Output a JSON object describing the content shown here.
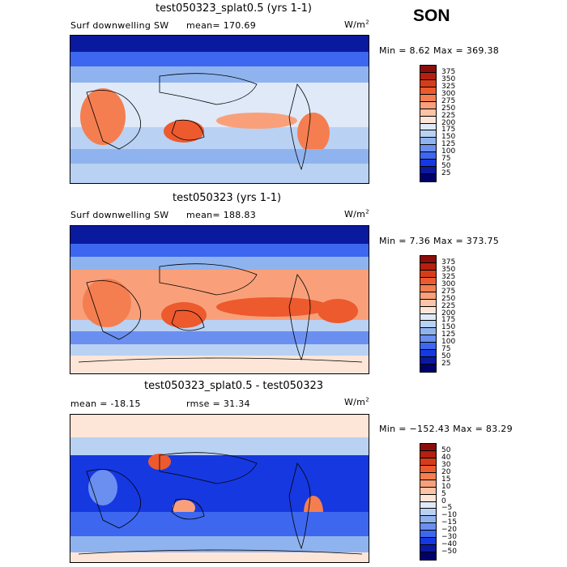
{
  "season": "SON",
  "panels": [
    {
      "title": "test050323_splat0.5 (yrs 1-1)",
      "variable": "Surf downwelling SW",
      "stat": "mean= 170.69",
      "units": "W/m",
      "units_sup": "2",
      "minmax": "Min =    8.62 Max = 369.38",
      "levels": [
        "375",
        "350",
        "325",
        "300",
        "275",
        "250",
        "225",
        "200",
        "175",
        "150",
        "125",
        "100",
        "75",
        "50",
        "25"
      ],
      "colors": [
        "#8b0d0b",
        "#b2210f",
        "#d73c1a",
        "#ec5a2e",
        "#f47e50",
        "#f9a07a",
        "#fbc4a6",
        "#fde6d8",
        "#dfe9f7",
        "#b9d1f3",
        "#8fb3ee",
        "#6a8ff0",
        "#3d67ef",
        "#1638e0",
        "#0a1a9e",
        "#00006b"
      ]
    },
    {
      "title": "test050323 (yrs 1-1)",
      "variable": "Surf downwelling SW",
      "stat": "mean= 188.83",
      "units": "W/m",
      "units_sup": "2",
      "minmax": "Min =    7.36 Max = 373.75",
      "levels": [
        "375",
        "350",
        "325",
        "300",
        "275",
        "250",
        "225",
        "200",
        "175",
        "150",
        "125",
        "100",
        "75",
        "50",
        "25"
      ],
      "colors": [
        "#8b0d0b",
        "#b2210f",
        "#d73c1a",
        "#ec5a2e",
        "#f47e50",
        "#f9a07a",
        "#fbc4a6",
        "#fde6d8",
        "#dfe9f7",
        "#b9d1f3",
        "#8fb3ee",
        "#6a8ff0",
        "#3d67ef",
        "#1638e0",
        "#0a1a9e",
        "#00006b"
      ]
    },
    {
      "title": "test050323_splat0.5 - test050323",
      "variable": "mean = -18.15",
      "stat": "rmse =  31.34",
      "units": "W/m",
      "units_sup": "2",
      "minmax": "Min = −152.43 Max =  83.29",
      "levels": [
        "50",
        "40",
        "30",
        "20",
        "15",
        "10",
        "5",
        "0",
        "−5",
        "−10",
        "−15",
        "−20",
        "−30",
        "−40",
        "−50"
      ],
      "colors": [
        "#8b0d0b",
        "#b2210f",
        "#d73c1a",
        "#ec5a2e",
        "#f47e50",
        "#f9a07a",
        "#fbc4a6",
        "#fde6d8",
        "#dfe9f7",
        "#b9d1f3",
        "#8fb3ee",
        "#6a8ff0",
        "#3d67ef",
        "#1638e0",
        "#0a1a9e",
        "#00006b"
      ]
    }
  ],
  "chart_data": [
    {
      "type": "heatmap",
      "title": "test050323_splat0.5 (yrs 1-1)",
      "subtitle": "Surf downwelling SW",
      "mean": 170.69,
      "min": 8.62,
      "max": 369.38,
      "units": "W/m2",
      "contour_levels": [
        25,
        50,
        75,
        100,
        125,
        150,
        175,
        200,
        225,
        250,
        275,
        300,
        325,
        350,
        375
      ]
    },
    {
      "type": "heatmap",
      "title": "test050323 (yrs 1-1)",
      "subtitle": "Surf downwelling SW",
      "mean": 188.83,
      "min": 7.36,
      "max": 373.75,
      "units": "W/m2",
      "contour_levels": [
        25,
        50,
        75,
        100,
        125,
        150,
        175,
        200,
        225,
        250,
        275,
        300,
        325,
        350,
        375
      ]
    },
    {
      "type": "heatmap",
      "title": "test050323_splat0.5 - test050323",
      "mean": -18.15,
      "rmse": 31.34,
      "min": -152.43,
      "max": 83.29,
      "units": "W/m2",
      "contour_levels": [
        -50,
        -40,
        -30,
        -20,
        -15,
        -10,
        -5,
        0,
        5,
        10,
        15,
        20,
        30,
        40,
        50
      ]
    }
  ]
}
